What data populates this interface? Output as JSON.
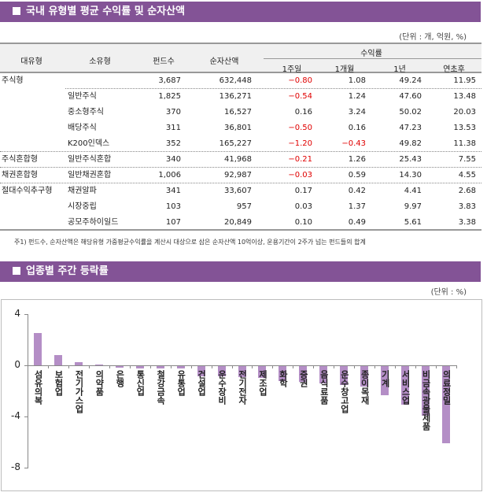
{
  "section1": {
    "title": "국내 유형별 평균 수익률 및 순자산액",
    "unit": "(단위 : 개, 억원, %)",
    "headers": {
      "major": "대유형",
      "minor": "소유형",
      "funds": "펀드수",
      "net_assets": "순자산액",
      "returns_group": "수익률",
      "w1": "1주일",
      "m1": "1개월",
      "y1": "1년",
      "ytd": "연초후"
    },
    "rows": [
      {
        "major": "주식형",
        "minor": "",
        "funds": "3,687",
        "net_assets": "632,448",
        "w1": "-0.80",
        "m1": "1.08",
        "y1": "49.24",
        "ytd": "11.95"
      },
      {
        "major": "",
        "minor": "일반주식",
        "funds": "1,825",
        "net_assets": "136,271",
        "w1": "-0.54",
        "m1": "1.24",
        "y1": "47.60",
        "ytd": "13.48"
      },
      {
        "major": "",
        "minor": "중소형주식",
        "funds": "370",
        "net_assets": "16,527",
        "w1": "0.16",
        "m1": "3.24",
        "y1": "50.02",
        "ytd": "20.03"
      },
      {
        "major": "",
        "minor": "배당주식",
        "funds": "311",
        "net_assets": "36,801",
        "w1": "-0.50",
        "m1": "0.16",
        "y1": "47.23",
        "ytd": "13.53"
      },
      {
        "major": "",
        "minor": "K200인덱스",
        "funds": "352",
        "net_assets": "165,227",
        "w1": "-1.20",
        "m1": "-0.43",
        "y1": "49.82",
        "ytd": "11.38"
      },
      {
        "major": "주식혼합형",
        "minor": "일반주식혼합",
        "funds": "340",
        "net_assets": "41,968",
        "w1": "-0.21",
        "m1": "1.26",
        "y1": "25.43",
        "ytd": "7.55"
      },
      {
        "major": "채권혼합형",
        "minor": "일반채권혼합",
        "funds": "1,006",
        "net_assets": "92,987",
        "w1": "-0.03",
        "m1": "0.59",
        "y1": "14.30",
        "ytd": "4.55"
      },
      {
        "major": "절대수익추구형",
        "minor": "채권알파",
        "funds": "341",
        "net_assets": "33,607",
        "w1": "0.17",
        "m1": "0.42",
        "y1": "4.41",
        "ytd": "2.68"
      },
      {
        "major": "",
        "minor": "시장중립",
        "funds": "103",
        "net_assets": "957",
        "w1": "0.03",
        "m1": "1.37",
        "y1": "9.97",
        "ytd": "3.83"
      },
      {
        "major": "",
        "minor": "공모주하이일드",
        "funds": "107",
        "net_assets": "20,849",
        "w1": "0.10",
        "m1": "0.49",
        "y1": "5.61",
        "ytd": "3.38"
      }
    ],
    "footnote": "주1) 펀드수, 순자산액은 해당유형 가중평균수익률을 계산시 대상으로 삼은 순자산액 10억이상, 운용기간이 2주가 넘는 펀드들의 합계"
  },
  "section2": {
    "title": "업종별 주간 등락률",
    "unit": "(단위 : %)"
  },
  "colors": {
    "band": "#835396",
    "bar": "#b48ec6",
    "negative_text": "#e00000"
  },
  "chart_data": {
    "type": "bar",
    "title": "업종별 주간 등락률",
    "xlabel": "",
    "ylabel": "",
    "unit": "%",
    "ylim": [
      -8,
      4
    ],
    "yticks": [
      4,
      0,
      -4,
      -8
    ],
    "grid": false,
    "legend": null,
    "categories": [
      "섬유의복",
      "보험업",
      "전기가스업",
      "의약품",
      "은행",
      "통신업",
      "철강금속",
      "유통업",
      "건설업",
      "운수장비",
      "전기전자",
      "제조업",
      "화학",
      "증권",
      "음식료품",
      "운수창고업",
      "종이목재",
      "기계",
      "서비스업",
      "비금속광물제품",
      "의료정밀"
    ],
    "values": [
      2.5,
      0.8,
      0.25,
      0.08,
      -0.12,
      -0.17,
      -0.17,
      -0.2,
      -0.8,
      -0.8,
      -0.85,
      -0.9,
      -1.15,
      -1.25,
      -1.35,
      -1.45,
      -1.6,
      -2.3,
      -3.0,
      -3.85,
      -6.05
    ]
  }
}
